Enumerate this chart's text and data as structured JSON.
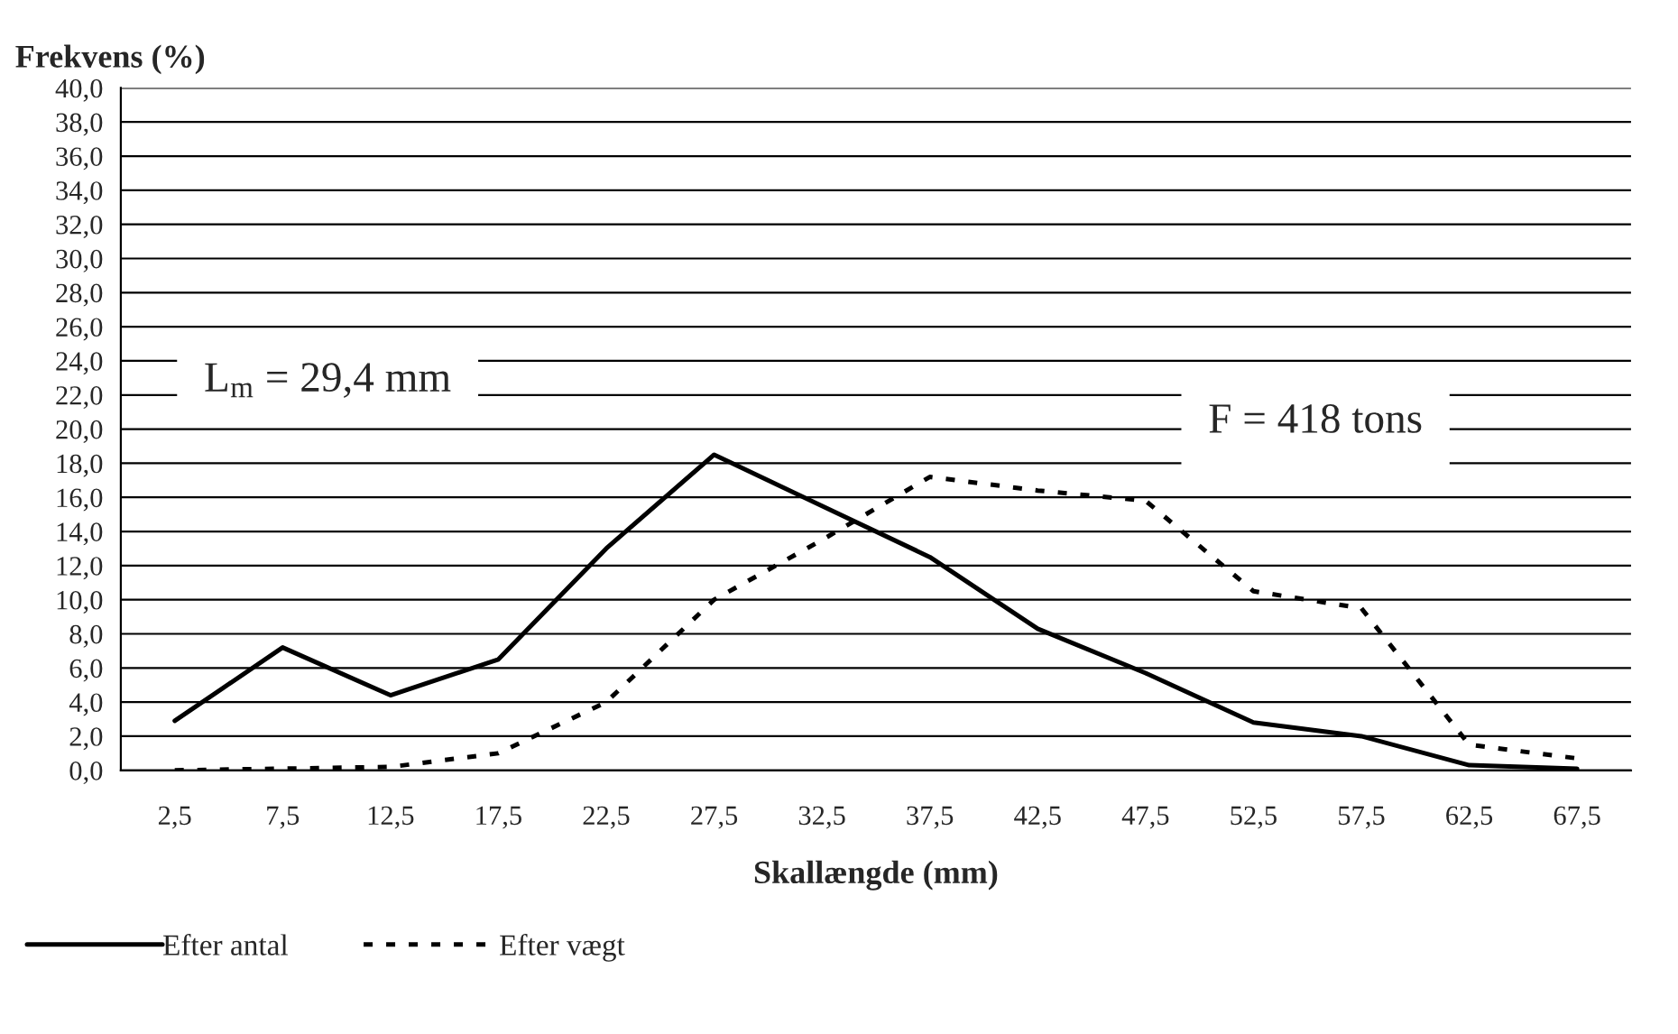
{
  "chart_data": {
    "type": "line",
    "ylabel": "Frekvens (%)",
    "xlabel": "Skallængde (mm)",
    "categories": [
      "2,5",
      "7,5",
      "12,5",
      "17,5",
      "22,5",
      "27,5",
      "32,5",
      "37,5",
      "42,5",
      "47,5",
      "52,5",
      "57,5",
      "62,5",
      "67,5"
    ],
    "series": [
      {
        "name": "Efter antal",
        "color": "#000000",
        "line_style": "solid",
        "values": [
          2.9,
          7.2,
          4.4,
          6.5,
          13.0,
          18.5,
          15.5,
          12.5,
          8.3,
          5.7,
          2.8,
          2.0,
          0.3,
          0.1
        ]
      },
      {
        "name": "Efter vægt",
        "color": "#000000",
        "line_style": "dotted",
        "values": [
          0.0,
          0.1,
          0.2,
          1.0,
          4.0,
          10.0,
          13.5,
          17.2,
          16.4,
          15.8,
          10.5,
          9.5,
          1.5,
          0.7
        ]
      }
    ],
    "ylim": [
      0,
      40
    ],
    "yticks": [
      {
        "value": 0,
        "label": "0,0"
      },
      {
        "value": 2,
        "label": "2,0"
      },
      {
        "value": 4,
        "label": "4,0"
      },
      {
        "value": 6,
        "label": "6,0"
      },
      {
        "value": 8,
        "label": "8,0"
      },
      {
        "value": 10,
        "label": "10,0"
      },
      {
        "value": 12,
        "label": "12,0"
      },
      {
        "value": 14,
        "label": "14,0"
      },
      {
        "value": 16,
        "label": "16,0"
      },
      {
        "value": 18,
        "label": "18,0"
      },
      {
        "value": 20,
        "label": "20,0"
      },
      {
        "value": 22,
        "label": "22,0"
      },
      {
        "value": 24,
        "label": "24,0"
      },
      {
        "value": 26,
        "label": "26,0"
      },
      {
        "value": 28,
        "label": "28,0"
      },
      {
        "value": 30,
        "label": "30,0"
      },
      {
        "value": 32,
        "label": "32,0"
      },
      {
        "value": 34,
        "label": "34,0"
      },
      {
        "value": 36,
        "label": "36,0"
      },
      {
        "value": 38,
        "label": "38,0"
      },
      {
        "value": 40,
        "label": "40,0"
      }
    ],
    "annotations": [
      "L$_{m}$ = 29,4 mm",
      "F = 418 tons"
    ],
    "grid": "y",
    "legend": "bottom",
    "marker": "none"
  }
}
